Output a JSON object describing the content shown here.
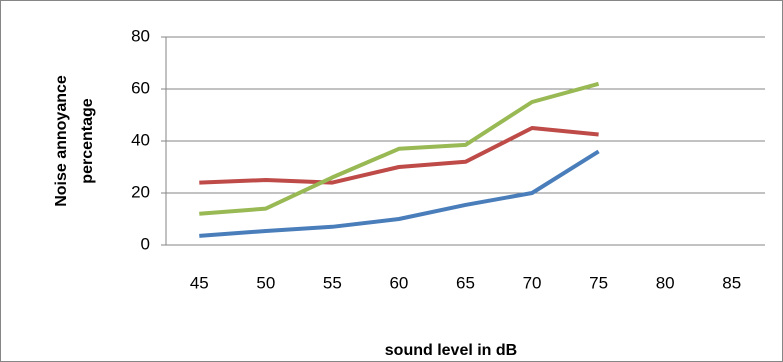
{
  "chart_data": {
    "type": "line",
    "ylabel": [
      "Noise annoyance",
      "percentage"
    ],
    "xlabel": "sound level in dB",
    "categories": [
      "45",
      "50",
      "55",
      "60",
      "65",
      "70",
      "75",
      "80",
      "85"
    ],
    "series": [
      {
        "color": "#4a7ebb",
        "values": [
          3.5,
          5.4,
          7,
          10,
          15.4,
          20,
          36,
          null,
          null
        ]
      },
      {
        "color": "#be4b48",
        "values": [
          24,
          25,
          24,
          30,
          32,
          45,
          42.5,
          null,
          null
        ]
      },
      {
        "color": "#98b954",
        "values": [
          12,
          14,
          26,
          37,
          38.5,
          55,
          62,
          null,
          null
        ]
      }
    ],
    "ylim": [
      0,
      80
    ],
    "yticks": [
      0,
      20,
      40,
      60,
      80
    ],
    "grid": true
  }
}
